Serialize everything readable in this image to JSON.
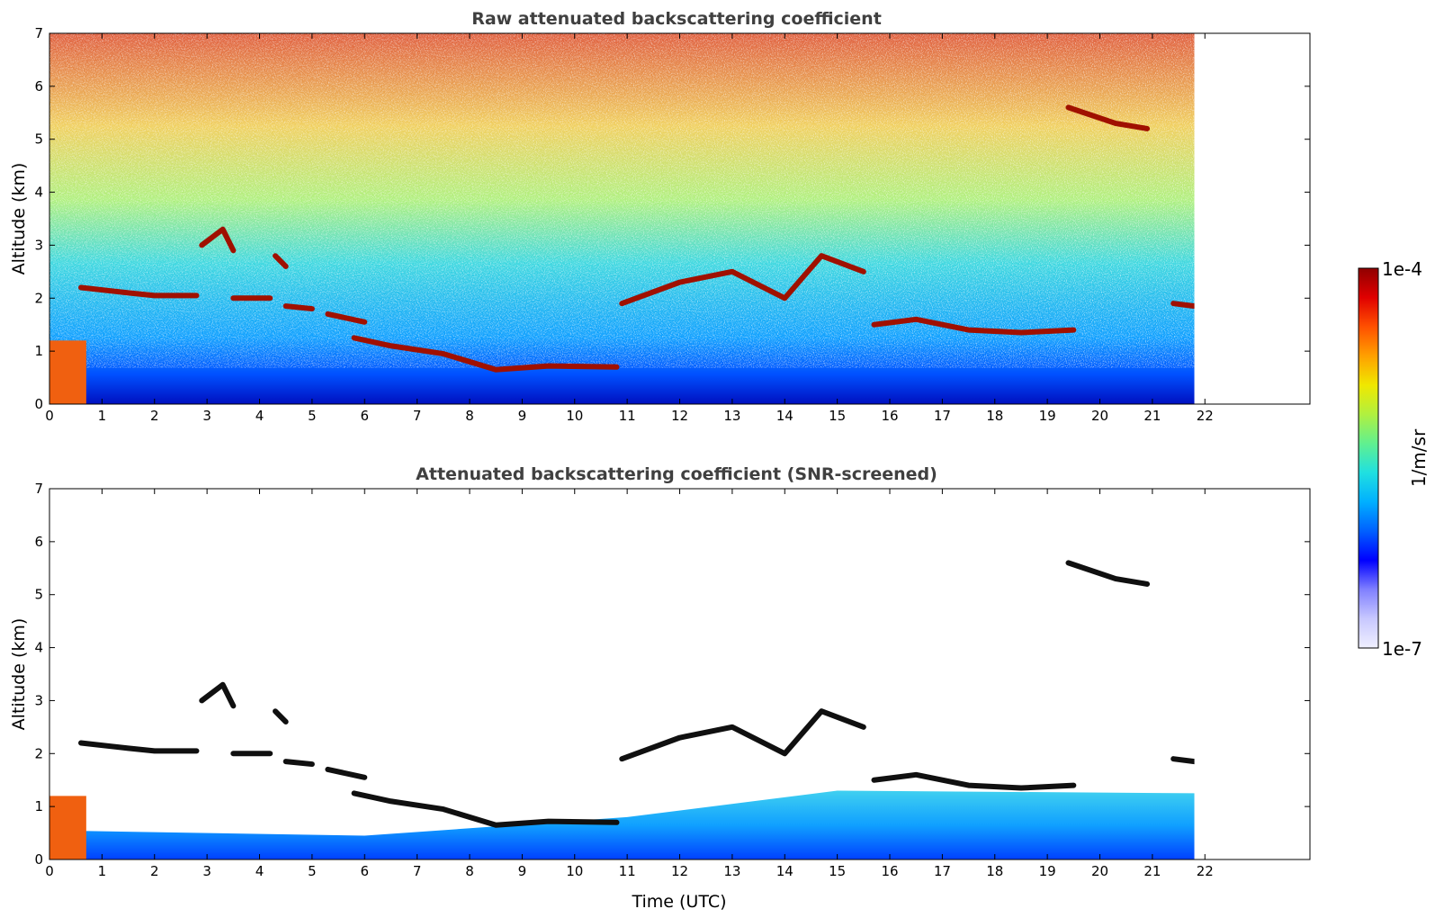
{
  "chart_data": [
    {
      "type": "heatmap",
      "title": "Raw attenuated backscattering coefficient",
      "xlabel": "",
      "ylabel": "Altitude (km)",
      "xlim": [
        0,
        24
      ],
      "ylim": [
        0,
        7
      ],
      "data_extent_x": [
        0,
        21.8
      ],
      "xticks": [
        0,
        1,
        2,
        3,
        4,
        5,
        6,
        7,
        8,
        9,
        10,
        11,
        12,
        13,
        14,
        15,
        16,
        17,
        18,
        19,
        20,
        21,
        22
      ],
      "yticks": [
        0,
        1,
        2,
        3,
        4,
        5,
        6,
        7
      ],
      "cloud_layers": [
        {
          "x": [
            0.6,
            1.5,
            2.0,
            2.8
          ],
          "y": [
            2.2,
            2.1,
            2.05,
            2.05
          ]
        },
        {
          "x": [
            2.9,
            3.3,
            3.5
          ],
          "y": [
            3.0,
            3.3,
            2.9
          ]
        },
        {
          "x": [
            3.5,
            4.2
          ],
          "y": [
            2.0,
            2.0
          ]
        },
        {
          "x": [
            4.3,
            4.5
          ],
          "y": [
            2.8,
            2.6
          ]
        },
        {
          "x": [
            4.5,
            5.0
          ],
          "y": [
            1.85,
            1.8
          ]
        },
        {
          "x": [
            5.3,
            6.0
          ],
          "y": [
            1.7,
            1.55
          ]
        },
        {
          "x": [
            5.8,
            6.5,
            7.5,
            8.5,
            9.5,
            10.8
          ],
          "y": [
            1.25,
            1.1,
            0.95,
            0.65,
            0.72,
            0.7
          ]
        },
        {
          "x": [
            10.9,
            12.0,
            13.0,
            14.0,
            14.7,
            15.5
          ],
          "y": [
            1.9,
            2.3,
            2.5,
            2.0,
            2.8,
            2.5
          ]
        },
        {
          "x": [
            15.7,
            16.5,
            17.5,
            18.5,
            19.5
          ],
          "y": [
            1.5,
            1.6,
            1.4,
            1.35,
            1.4
          ]
        },
        {
          "x": [
            19.4,
            20.3,
            20.9
          ],
          "y": [
            5.6,
            5.3,
            5.2
          ]
        },
        {
          "x": [
            21.4,
            21.8
          ],
          "y": [
            1.9,
            1.85
          ]
        }
      ]
    },
    {
      "type": "heatmap",
      "title": "Attenuated backscattering coefficient (SNR-screened)",
      "xlabel": "Time (UTC)",
      "ylabel": "Altitude (km)",
      "xlim": [
        0,
        24
      ],
      "ylim": [
        0,
        7
      ],
      "data_extent_x": [
        0,
        21.8
      ],
      "xticks": [
        0,
        1,
        2,
        3,
        4,
        5,
        6,
        7,
        8,
        9,
        10,
        11,
        12,
        13,
        14,
        15,
        16,
        17,
        18,
        19,
        20,
        21,
        22
      ],
      "yticks": [
        0,
        1,
        2,
        3,
        4,
        5,
        6,
        7
      ]
    }
  ],
  "colorbar": {
    "label": "1/m/sr",
    "max_label": "1e-4",
    "min_label": "1e-7",
    "scale": "log",
    "colormap": [
      "#f0f0ff",
      "#c8c8ff",
      "#8080ff",
      "#0000ff",
      "#0060ff",
      "#00b0ff",
      "#20e0e0",
      "#60f090",
      "#b0f040",
      "#f0e800",
      "#ffa000",
      "#ff5000",
      "#e00000",
      "#900000"
    ]
  }
}
